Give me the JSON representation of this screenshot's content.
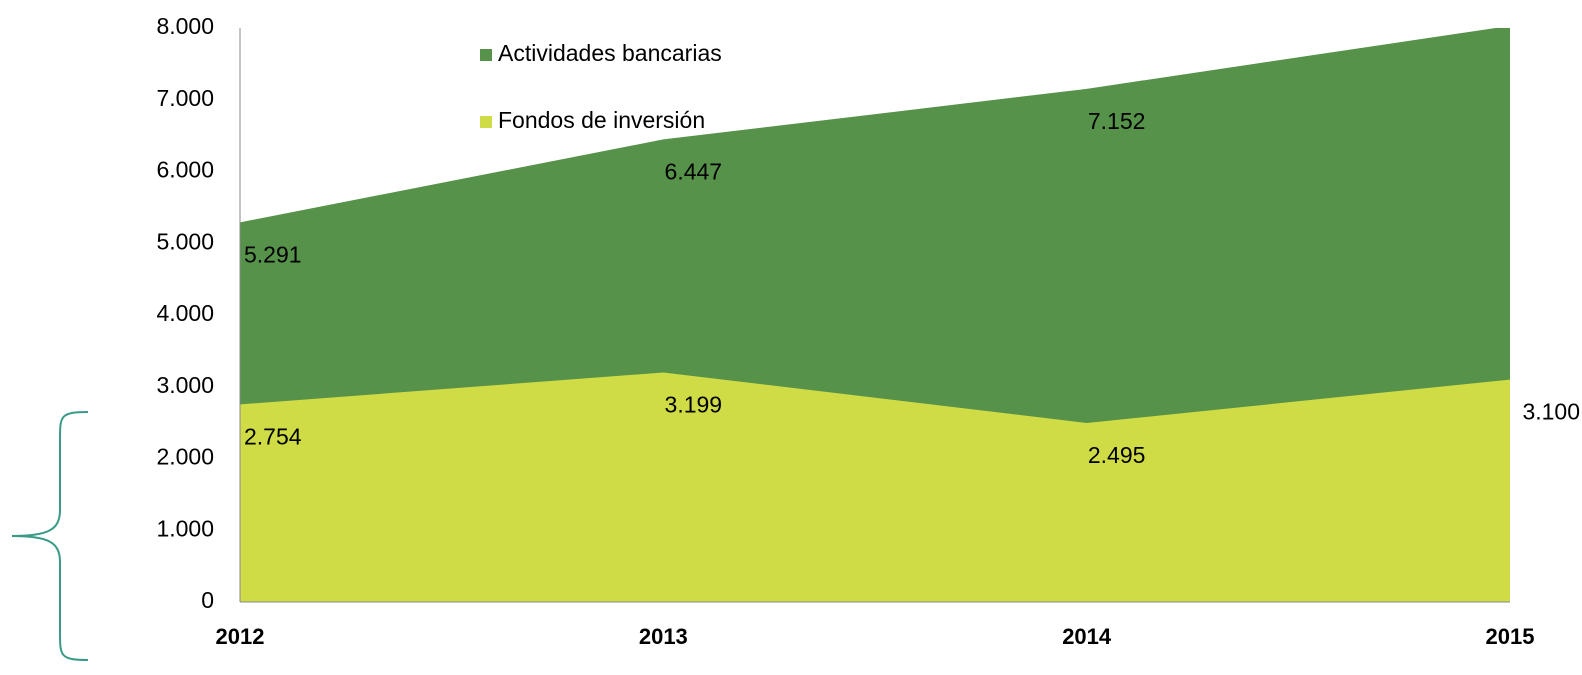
{
  "chart_data": {
    "type": "area",
    "categories": [
      "2012",
      "2013",
      "2014",
      "2015"
    ],
    "series": [
      {
        "name": "Actividades bancarias",
        "color": "#56924a",
        "values": [
          5291,
          6447,
          7152,
          8030
        ],
        "value_labels": [
          "5.291",
          "6.447",
          "7.152",
          null
        ]
      },
      {
        "name": "Fondos de inversión",
        "color": "#cfdc45",
        "values": [
          2754,
          3199,
          2495,
          3100
        ],
        "value_labels": [
          "2.754",
          "3.199",
          "2.495",
          "3.100"
        ]
      }
    ],
    "ylim": [
      0,
      8000
    ],
    "yticks": [
      0,
      {
        "value": 1000,
        "label": "1.000"
      },
      {
        "value": 2000,
        "label": "2.000"
      },
      {
        "value": 3000,
        "label": "3.000"
      },
      {
        "value": 4000,
        "label": "4.000"
      },
      {
        "value": 5000,
        "label": "5.000"
      },
      {
        "value": 6000,
        "label": "6.000"
      },
      {
        "value": 7000,
        "label": "7.000"
      },
      {
        "value": 8000,
        "label": "8.000"
      }
    ],
    "legend": "top-left"
  }
}
